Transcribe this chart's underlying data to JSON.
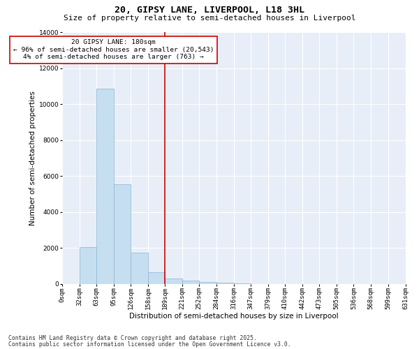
{
  "title1": "20, GIPSY LANE, LIVERPOOL, L18 3HL",
  "title2": "Size of property relative to semi-detached houses in Liverpool",
  "xlabel": "Distribution of semi-detached houses by size in Liverpool",
  "ylabel": "Number of semi-detached properties",
  "footnote1": "Contains HM Land Registry data © Crown copyright and database right 2025.",
  "footnote2": "Contains public sector information licensed under the Open Government Licence v3.0.",
  "bin_edges": [
    0,
    32,
    63,
    95,
    126,
    158,
    189,
    221,
    252,
    284,
    316,
    347,
    379,
    410,
    442,
    473,
    505,
    536,
    568,
    599,
    631
  ],
  "bin_labels": [
    "0sqm",
    "32sqm",
    "63sqm",
    "95sqm",
    "126sqm",
    "158sqm",
    "189sqm",
    "221sqm",
    "252sqm",
    "284sqm",
    "316sqm",
    "347sqm",
    "379sqm",
    "410sqm",
    "442sqm",
    "473sqm",
    "505sqm",
    "536sqm",
    "568sqm",
    "599sqm",
    "631sqm"
  ],
  "counts": [
    0,
    2050,
    10850,
    5550,
    1750,
    650,
    320,
    175,
    100,
    55,
    20,
    0,
    0,
    0,
    0,
    0,
    0,
    0,
    0,
    0
  ],
  "bar_color": "#c5dff0",
  "bar_edge_color": "#8ab4d4",
  "vline_x": 189,
  "vline_color": "#cc0000",
  "annotation_text": "20 GIPSY LANE: 180sqm\n← 96% of semi-detached houses are smaller (20,543)\n4% of semi-detached houses are larger (763) →",
  "annotation_box_color": "#cc0000",
  "ylim": [
    0,
    14000
  ],
  "yticks": [
    0,
    2000,
    4000,
    6000,
    8000,
    10000,
    12000,
    14000
  ],
  "bg_color": "#e8eef8",
  "title_fontsize": 9.5,
  "subtitle_fontsize": 8.0,
  "axis_label_fontsize": 7.5,
  "tick_fontsize": 6.5,
  "annot_fontsize": 6.8,
  "footnote_fontsize": 5.8
}
